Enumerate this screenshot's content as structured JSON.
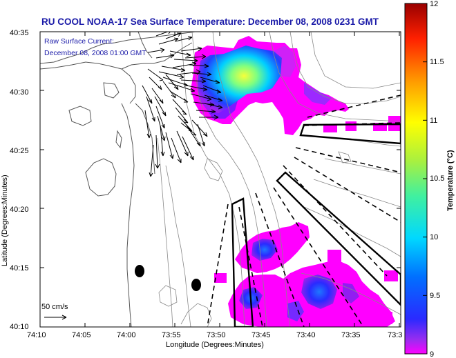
{
  "title": "RU COOL  NOAA-17  Sea Surface Temperature:  December 08, 2008 0231 GMT",
  "annotation": {
    "line1": "Raw Surface Current:",
    "line2": "December 08, 2008 01:00 GMT"
  },
  "axes": {
    "xlabel": "Longitude (Degrees:Minutes)",
    "ylabel": "Latitude (Degrees:Minutes)",
    "x_ticks": [
      "74:10",
      "74:05",
      "74:00",
      "73:55",
      "73:50",
      "73:45",
      "73:40",
      "73:35",
      "73:3"
    ],
    "y_ticks": [
      "40:35",
      "40:30",
      "40:25",
      "40:20",
      "40:15",
      "40:10"
    ]
  },
  "scale": {
    "label": "50 cm/s"
  },
  "colorbar": {
    "label": "Temperature (°C)",
    "ticks": [
      "12",
      "11.5",
      "11",
      "10.5",
      "10",
      "9.5",
      "9"
    ],
    "min": 9,
    "max": 12
  },
  "colors": {
    "title_text": "#1a1aa8",
    "land": "#ffffff",
    "low_temp": "#ff00ff",
    "high_temp": "#ffff00"
  }
}
